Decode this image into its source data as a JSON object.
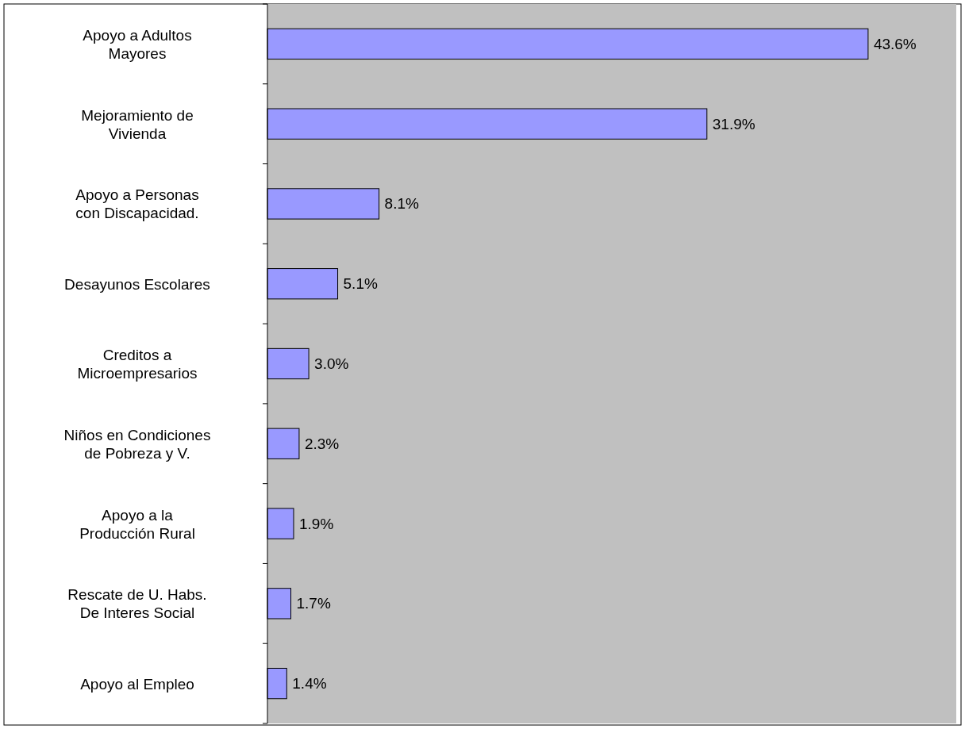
{
  "chart_data": {
    "type": "bar",
    "orientation": "horizontal",
    "categories": [
      "Apoyo a Adultos\nMayores",
      "Mejoramiento de\nVivienda",
      "Apoyo a Personas\ncon Discapacidad.",
      "Desayunos Escolares",
      "Creditos a\nMicroempresarios",
      "Niños en Condiciones\nde Pobreza y V.",
      "Apoyo a la\nProducción Rural",
      "Rescate de U. Habs.\nDe Interes Social",
      "Apoyo al Empleo"
    ],
    "values": [
      43.6,
      31.9,
      8.1,
      5.1,
      3.0,
      2.3,
      1.9,
      1.7,
      1.4
    ],
    "value_labels": [
      "43.6%",
      "31.9%",
      "8.1%",
      "5.1%",
      "3.0%",
      "2.3%",
      "1.9%",
      "1.7%",
      "1.4%"
    ],
    "color": "#9999ff",
    "xlim": [
      0,
      50
    ],
    "tick_labels": "y"
  }
}
